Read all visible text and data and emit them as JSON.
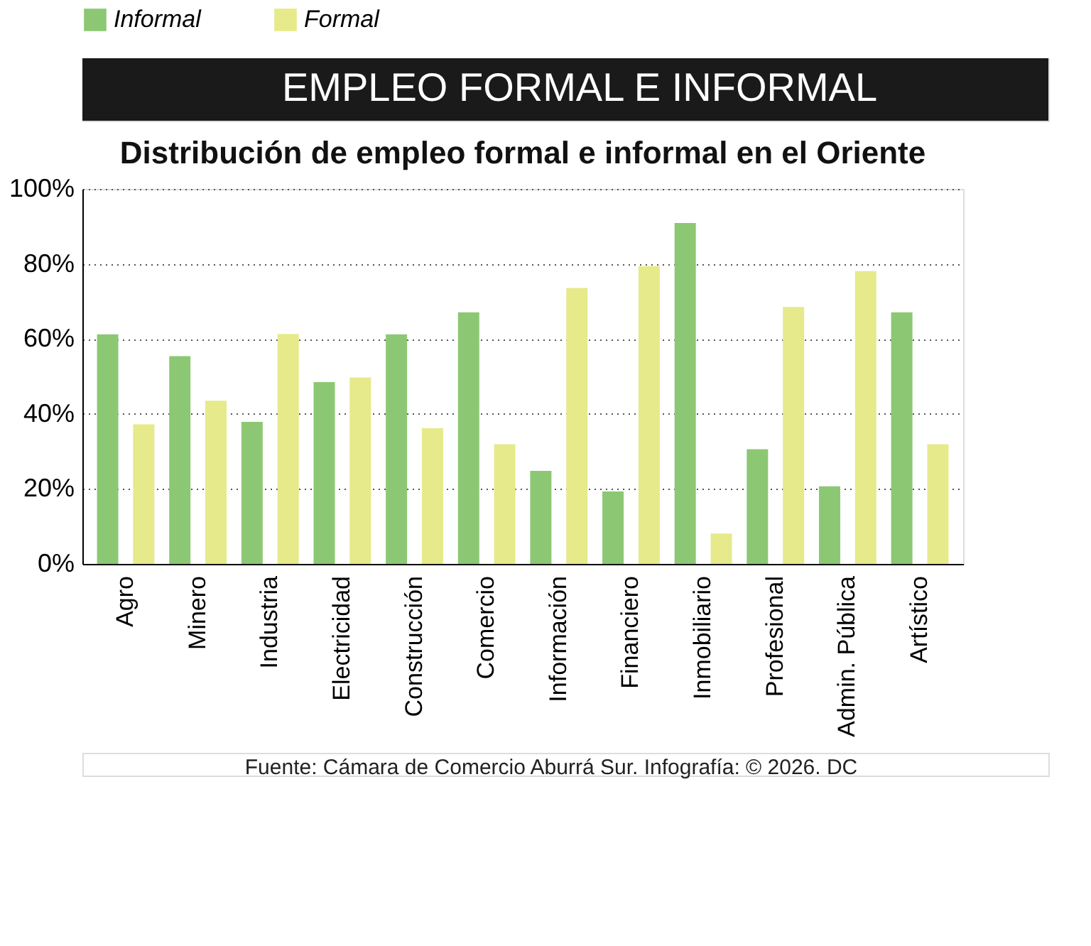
{
  "chart_data": {
    "type": "bar",
    "title": "EMPLEO FORMAL E INFORMAL",
    "subtitle": "Distribución de empleo formal e informal en el Oriente",
    "categories": [
      "Agro",
      "Minero",
      "Industria",
      "Electricidad",
      "Construcción",
      "Comercio",
      "Información",
      "Financiero",
      "Inmobiliario",
      "Profesional",
      "Admin. Pública",
      "Artístico"
    ],
    "series": [
      {
        "name": "Informal",
        "color": "#8cc873",
        "values": [
          61.2,
          55.4,
          37.9,
          48.5,
          61.2,
          67.1,
          24.8,
          19.3,
          90.9,
          30.6,
          20.7,
          67.1
        ]
      },
      {
        "name": "Formal",
        "color": "#e6ea8a",
        "values": [
          37.2,
          43.5,
          61.3,
          49.7,
          36.2,
          31.9,
          73.6,
          79.4,
          8.1,
          68.5,
          78.1,
          31.9
        ]
      }
    ],
    "ylim": [
      0,
      100
    ],
    "yticks": [
      {
        "value": 0,
        "label": "0%"
      },
      {
        "value": 20,
        "label": "20%"
      },
      {
        "value": 40,
        "label": "40%"
      },
      {
        "value": 60,
        "label": "60%"
      },
      {
        "value": 80,
        "label": "80%"
      },
      {
        "value": 100,
        "label": "100%"
      }
    ],
    "grid": "y",
    "legend": "top",
    "annotations": [
      "Fuente: Cámara de Comercio Aburrá Sur. Infografía: © 2026. DC"
    ]
  }
}
